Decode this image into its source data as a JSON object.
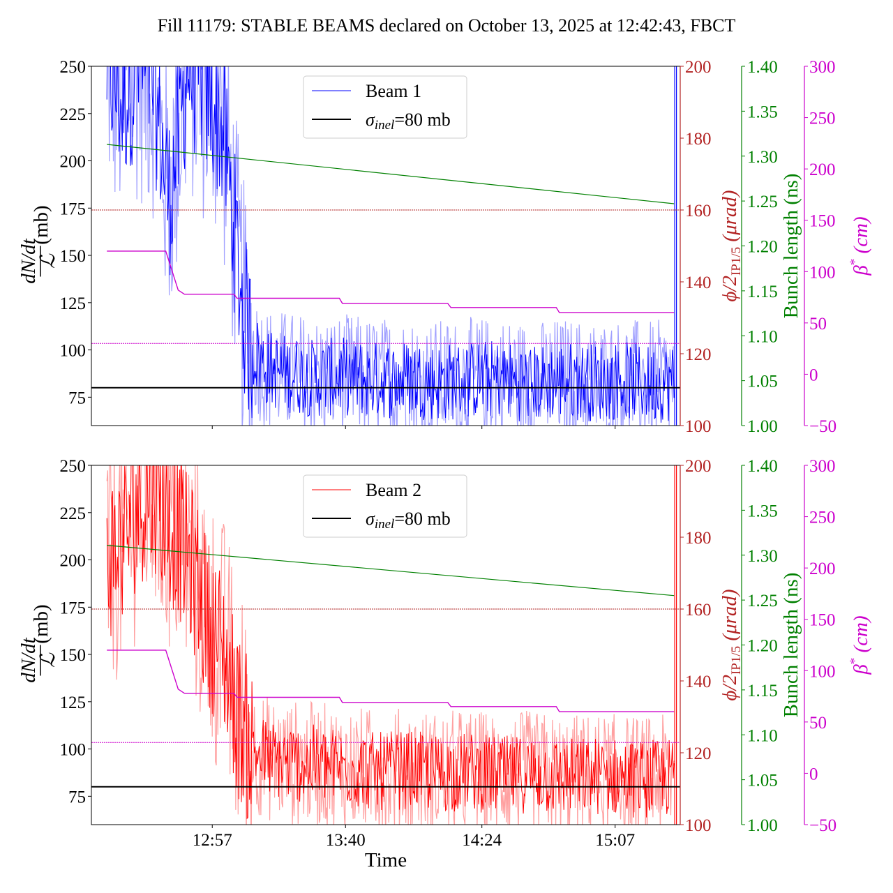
{
  "title": "Fill 11179: STABLE BEAMS declared on October 13, 2025 at 12:42:43, FBCT",
  "colors": {
    "beam1": "#0000ff",
    "beam1_band": "#8080ff",
    "beam2": "#ff0000",
    "beam2_band": "#ff8080",
    "crossing": "#b22222",
    "bunch": "#008000",
    "beta": "#cc00cc",
    "sigma": "#000000"
  },
  "chart_data": [
    {
      "type": "line",
      "panel": "top",
      "xlabel": "",
      "x_tick_labels": [
        "12:57",
        "13:40",
        "14:24",
        "15:07"
      ],
      "x_ticks_minutes": [
        777,
        820,
        864,
        907
      ],
      "xlim_minutes": [
        738,
        928
      ],
      "left_axis": {
        "label_num": "dN/dt",
        "label_den": "ℒ",
        "label_unit": "(mb)",
        "ylim": [
          60,
          250
        ],
        "ticks": [
          "75",
          "100",
          "125",
          "150",
          "175",
          "200",
          "225",
          "250"
        ]
      },
      "right_axes": [
        {
          "name": "crossing_angle",
          "label_main": "ϕ/2",
          "label_sub": "IP1/5",
          "label_unit": "(μrad)",
          "ylim": [
            100,
            200
          ],
          "ticks": [
            "100",
            "120",
            "140",
            "160",
            "180",
            "200"
          ]
        },
        {
          "name": "bunch_length",
          "label": "Bunch length (ns)",
          "ylim": [
            1.0,
            1.4
          ],
          "ticks": [
            "1.00",
            "1.05",
            "1.10",
            "1.15",
            "1.20",
            "1.25",
            "1.30",
            "1.35",
            "1.40"
          ]
        },
        {
          "name": "beta_star",
          "label_main": "β",
          "label_sup": "*",
          "label_unit": "(cm)",
          "ylim": [
            -50,
            300
          ],
          "ticks": [
            "−50",
            "0",
            "50",
            "100",
            "150",
            "200",
            "250",
            "300"
          ]
        }
      ],
      "legend": {
        "placement": "top-center",
        "entries": [
          {
            "label": "Beam 1",
            "color": "#0000ff"
          },
          {
            "label_sym": "σ",
            "label_sub": "inel",
            "label_rest": "=80 mb",
            "color": "#000000"
          }
        ]
      },
      "sigma_inel_mb": 80,
      "crossing_angle_urad": 160,
      "beta_star_ref_cm": 30,
      "series": {
        "name": "Beam 1",
        "x_minutes": [
          743,
          748,
          753,
          758,
          763,
          766,
          769,
          772,
          775,
          778,
          781,
          783,
          785,
          787,
          790,
          795,
          800,
          810,
          820,
          830,
          840,
          850,
          860,
          870,
          880,
          890,
          900,
          910,
          918,
          926
        ],
        "y_mb": [
          250,
          230,
          250,
          240,
          180,
          210,
          250,
          245,
          235,
          230,
          210,
          180,
          150,
          120,
          100,
          90,
          88,
          85,
          86,
          84,
          85,
          83,
          84,
          85,
          82,
          84,
          83,
          84,
          82,
          83
        ]
      },
      "bunch_length_ns": {
        "x_minutes": [
          743,
          926
        ],
        "values": [
          1.313,
          1.247
        ]
      },
      "beta_star_cm": {
        "x_minutes": [
          743,
          762,
          766,
          768,
          784,
          785,
          818,
          819,
          853,
          854,
          888,
          889,
          926
        ],
        "values": [
          120,
          120,
          82,
          78,
          78,
          74,
          74,
          69,
          69,
          65,
          65,
          60,
          60
        ]
      }
    },
    {
      "type": "line",
      "panel": "bottom",
      "xlabel": "Time",
      "x_tick_labels": [
        "12:57",
        "13:40",
        "14:24",
        "15:07"
      ],
      "x_ticks_minutes": [
        777,
        820,
        864,
        907
      ],
      "xlim_minutes": [
        738,
        928
      ],
      "left_axis": {
        "label_num": "dN/dt",
        "label_den": "ℒ",
        "label_unit": "(mb)",
        "ylim": [
          60,
          250
        ],
        "ticks": [
          "75",
          "100",
          "125",
          "150",
          "175",
          "200",
          "225",
          "250"
        ]
      },
      "right_axes": [
        {
          "name": "crossing_angle",
          "label_main": "ϕ/2",
          "label_sub": "IP1/5",
          "label_unit": "(μrad)",
          "ylim": [
            100,
            200
          ],
          "ticks": [
            "100",
            "120",
            "140",
            "160",
            "180",
            "200"
          ]
        },
        {
          "name": "bunch_length",
          "label": "Bunch length (ns)",
          "ylim": [
            1.0,
            1.4
          ],
          "ticks": [
            "1.00",
            "1.05",
            "1.10",
            "1.15",
            "1.20",
            "1.25",
            "1.30",
            "1.35",
            "1.40"
          ]
        },
        {
          "name": "beta_star",
          "label_main": "β",
          "label_sup": "*",
          "label_unit": "(cm)",
          "ylim": [
            -50,
            300
          ],
          "ticks": [
            "−50",
            "0",
            "50",
            "100",
            "150",
            "200",
            "250",
            "300"
          ]
        }
      ],
      "legend": {
        "placement": "top-center",
        "entries": [
          {
            "label": "Beam 2",
            "color": "#ff0000"
          },
          {
            "label_sym": "σ",
            "label_sub": "inel",
            "label_rest": "=80 mb",
            "color": "#000000"
          }
        ]
      },
      "sigma_inel_mb": 80,
      "crossing_angle_urad": 160,
      "beta_star_ref_cm": 30,
      "series": {
        "name": "Beam 2",
        "x_minutes": [
          743,
          748,
          753,
          758,
          763,
          766,
          769,
          772,
          775,
          778,
          781,
          783,
          785,
          787,
          790,
          795,
          800,
          810,
          820,
          830,
          840,
          850,
          860,
          870,
          880,
          890,
          900,
          910,
          918,
          926
        ],
        "y_mb": [
          200,
          210,
          230,
          240,
          220,
          215,
          200,
          190,
          170,
          160,
          150,
          135,
          120,
          110,
          100,
          95,
          93,
          92,
          90,
          88,
          89,
          87,
          88,
          86,
          87,
          85,
          86,
          85,
          84,
          85
        ]
      },
      "bunch_length_ns": {
        "x_minutes": [
          743,
          926
        ],
        "values": [
          1.311,
          1.255
        ]
      },
      "beta_star_cm": {
        "x_minutes": [
          743,
          762,
          766,
          768,
          784,
          785,
          818,
          819,
          853,
          854,
          888,
          889,
          926
        ],
        "values": [
          120,
          120,
          82,
          78,
          78,
          74,
          74,
          69,
          69,
          65,
          65,
          60,
          60
        ]
      }
    }
  ]
}
